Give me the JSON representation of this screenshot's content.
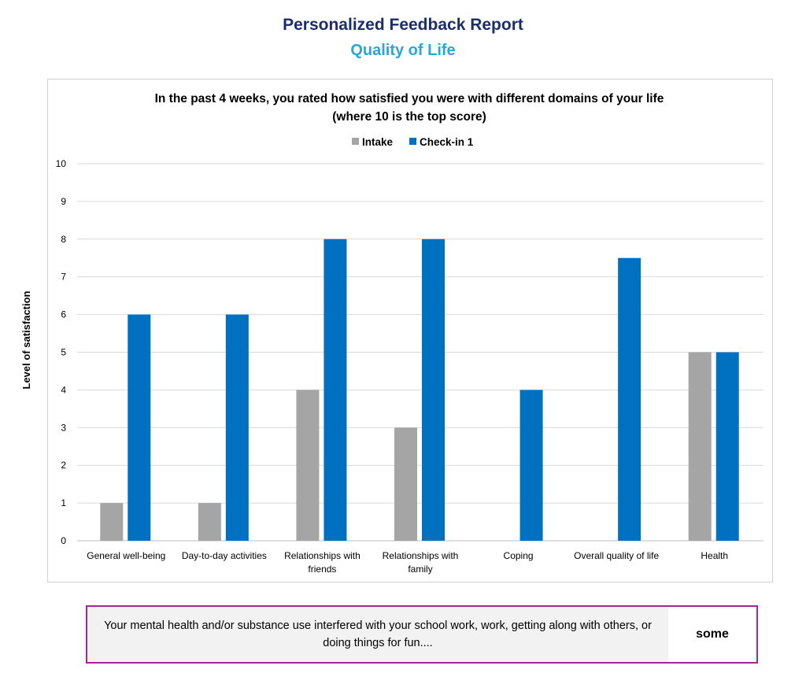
{
  "header": {
    "title": "Personalized Feedback Report",
    "subtitle": "Quality of Life"
  },
  "chart_data": {
    "type": "bar",
    "title": "In the past 4 weeks, you rated how satisfied you were with  different domains of your life",
    "subtitle": "(where 10 is the top score)",
    "ylabel": "Level of satisfaction",
    "xlabel": "",
    "ylim": [
      0,
      10
    ],
    "yticks": [
      "0",
      "1",
      "2",
      "3",
      "4",
      "5",
      "6",
      "7",
      "8",
      "9",
      "10"
    ],
    "categories": [
      [
        "General well-being"
      ],
      [
        "Day-to-day activities"
      ],
      [
        "Relationships with",
        "friends"
      ],
      [
        "Relationships with",
        "family"
      ],
      [
        "Coping"
      ],
      [
        "Overall quality of life"
      ],
      [
        "Health"
      ]
    ],
    "series": [
      {
        "name": "Intake",
        "color": "#a5a5a5",
        "values": [
          1,
          1,
          4,
          3,
          null,
          null,
          5
        ]
      },
      {
        "name": "Check-in 1",
        "color": "#0070c0",
        "values": [
          6,
          6,
          8,
          8,
          4,
          7.5,
          5
        ]
      }
    ],
    "legend": "top",
    "grid": true
  },
  "feedback": {
    "question": "Your mental health and/or substance use interfered with your school work, work, getting along with others, or doing things for fun....",
    "answer": "some"
  }
}
